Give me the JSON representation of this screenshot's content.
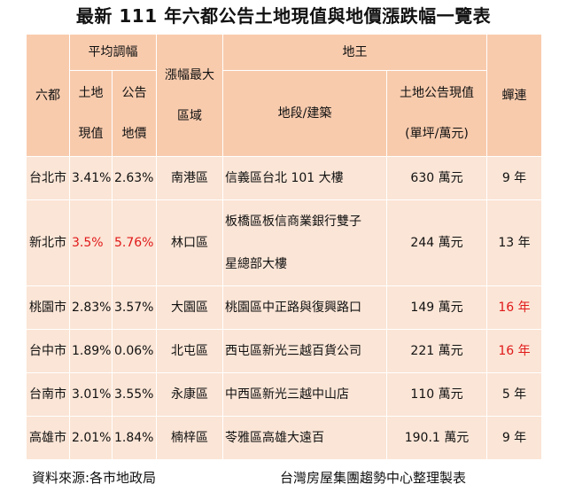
{
  "title": "最新 111 年六都公告土地現值與地價漲跌幅一覽表",
  "headers": {
    "city": "六都",
    "avg_change": "平均調幅",
    "land_value_line1": "土地",
    "land_value_line2": "現值",
    "public_price_line1": "公告",
    "public_price_line2": "地價",
    "max_area_line1": "漲幅最大",
    "max_area_line2": "區域",
    "land_king": "地王",
    "land_section": "地段/建築",
    "land_price_line1": "土地公告現值",
    "land_price_line2": "(單坪/萬元)",
    "years": "蟬連"
  },
  "rows": [
    {
      "city": "台北市",
      "land_value": "3.41%",
      "public_price": "2.63%",
      "area": "南港區",
      "land_section": "信義區台北 101 大樓",
      "price": "630 萬元",
      "years": "9 年",
      "red_land_value": false,
      "red_public_price": false,
      "red_years": false
    },
    {
      "city": "新北市",
      "land_value": "3.5%",
      "public_price": "5.76%",
      "area": "林口區",
      "land_section": "板橋區板信商業銀行雙子星總部大樓",
      "land_section_line1": "板橋區板信商業銀行雙子",
      "land_section_line2": "星總部大樓",
      "price": "244 萬元",
      "years": "13 年",
      "red_land_value": true,
      "red_public_price": true,
      "red_years": false
    },
    {
      "city": "桃園市",
      "land_value": "2.83%",
      "public_price": "3.57%",
      "area": "大園區",
      "land_section": "桃園區中正路與復興路口",
      "price": "149 萬元",
      "years": "16 年",
      "red_land_value": false,
      "red_public_price": false,
      "red_years": true
    },
    {
      "city": "台中市",
      "land_value": "1.89%",
      "public_price": "0.06%",
      "area": "北屯區",
      "land_section": "西屯區新光三越百貨公司",
      "price": "221 萬元",
      "years": "16 年",
      "red_land_value": false,
      "red_public_price": false,
      "red_years": true
    },
    {
      "city": "台南市",
      "land_value": "3.01%",
      "public_price": "3.55%",
      "area": "永康區",
      "land_section": "中西區新光三越中山店",
      "price": "110 萬元",
      "years": "5 年",
      "red_land_value": false,
      "red_public_price": false,
      "red_years": false
    },
    {
      "city": "高雄市",
      "land_value": "2.01%",
      "public_price": "1.84%",
      "area": "楠梓區",
      "land_section": "苓雅區高雄大遠百",
      "price": "190.1 萬元",
      "years": "9 年",
      "red_land_value": false,
      "red_public_price": false,
      "red_years": false
    }
  ],
  "footer": {
    "source": "資料來源:各市地政局",
    "compiler": "台灣房屋集團趨勢中心整理製表"
  },
  "colors": {
    "header_bg": "#f8cbad",
    "body_bg": "#fbe5d6",
    "highlight_text": "#e0191a"
  }
}
